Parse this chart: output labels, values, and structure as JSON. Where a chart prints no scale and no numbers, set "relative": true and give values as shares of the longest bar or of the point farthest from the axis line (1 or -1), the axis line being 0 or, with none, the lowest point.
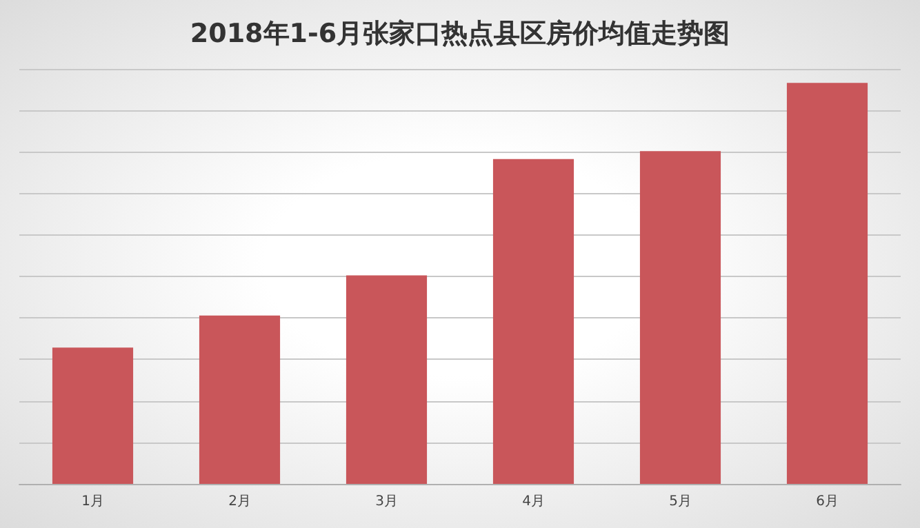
{
  "chart_data": {
    "type": "bar",
    "title": "2018年1-6月张家口热点县区房价均值走势图",
    "categories": [
      "1月",
      "2月",
      "3月",
      "4月",
      "5月",
      "6月"
    ],
    "values": [
      0.34,
      0.42,
      0.52,
      0.81,
      0.83,
      1
    ],
    "color": "#c9565a",
    "relative": true,
    "grid": "y"
  }
}
